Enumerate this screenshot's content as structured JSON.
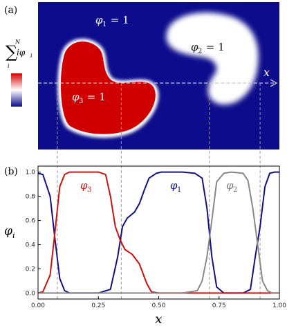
{
  "panel_a": {
    "label": "(a)",
    "sum_top": "N",
    "sum_symbol": "∑",
    "sum_bottom": "i",
    "sum_body": "iφ",
    "sum_body_sub": "i",
    "region_labels": [
      {
        "name": "φ",
        "sub": "1",
        "eq": " = 1"
      },
      {
        "name": "φ",
        "sub": "2",
        "eq": " = 1"
      },
      {
        "name": "φ",
        "sub": "3",
        "eq": " = 1"
      }
    ],
    "axis_arrow_label": "x",
    "colormap": [
      "#0a0a8a",
      "#ffffff",
      "#d10000"
    ]
  },
  "panel_b": {
    "label": "(b)",
    "xlabel": "x",
    "ylabel_sym": "φ",
    "ylabel_sub": "i",
    "xlim": [
      0.0,
      1.0
    ],
    "ylim": [
      0.0,
      1.0
    ],
    "xticks": [
      "0.00",
      "0.25",
      "0.50",
      "0.75",
      "1.00"
    ],
    "yticks": [
      "0.0",
      "0.2",
      "0.4",
      "0.6",
      "0.8",
      "1.0"
    ],
    "dashed_x": [
      0.08,
      0.345,
      0.71,
      0.92
    ],
    "series_labels": [
      {
        "name": "φ",
        "sub": "3",
        "color": "#cc1111"
      },
      {
        "name": "φ",
        "sub": "1",
        "color": "#101080"
      },
      {
        "name": "φ",
        "sub": "2",
        "color": "#888888"
      }
    ]
  },
  "chart_data": {
    "type": "line",
    "xlabel": "x",
    "ylabel": "φi",
    "xlim": [
      0,
      1
    ],
    "ylim": [
      0,
      1
    ],
    "grid": false,
    "series": [
      {
        "name": "φ1",
        "color": "#101080",
        "x": [
          0,
          0.02,
          0.05,
          0.07,
          0.09,
          0.11,
          0.13,
          0.16,
          0.2,
          0.25,
          0.3,
          0.33,
          0.35,
          0.37,
          0.4,
          0.42,
          0.44,
          0.46,
          0.49,
          0.51,
          0.55,
          0.6,
          0.65,
          0.68,
          0.7,
          0.72,
          0.74,
          0.77,
          0.8,
          0.85,
          0.88,
          0.9,
          0.92,
          0.94,
          0.96,
          0.98,
          1.0
        ],
        "y": [
          0.99,
          0.98,
          0.8,
          0.45,
          0.12,
          0.02,
          0.0,
          0.0,
          0.0,
          0.0,
          0.03,
          0.3,
          0.55,
          0.62,
          0.67,
          0.74,
          0.85,
          0.95,
          0.99,
          1.0,
          1.0,
          1.0,
          0.99,
          0.95,
          0.7,
          0.3,
          0.05,
          0.0,
          0.0,
          0.0,
          0.03,
          0.3,
          0.55,
          0.88,
          0.99,
          1.0,
          1.0
        ]
      },
      {
        "name": "φ3",
        "color": "#cc1111",
        "x": [
          0,
          0.02,
          0.05,
          0.07,
          0.09,
          0.11,
          0.13,
          0.16,
          0.2,
          0.25,
          0.28,
          0.3,
          0.32,
          0.34,
          0.36,
          0.39,
          0.42,
          0.45,
          0.47,
          0.5,
          0.6,
          0.8,
          1.0
        ],
        "y": [
          0.0,
          0.01,
          0.15,
          0.5,
          0.88,
          0.98,
          1.0,
          1.0,
          1.0,
          1.0,
          0.98,
          0.8,
          0.55,
          0.44,
          0.36,
          0.32,
          0.24,
          0.08,
          0.01,
          0.0,
          0.0,
          0.0,
          0.0
        ]
      },
      {
        "name": "φ2",
        "color": "#888888",
        "x": [
          0,
          0.6,
          0.66,
          0.68,
          0.7,
          0.72,
          0.74,
          0.77,
          0.8,
          0.85,
          0.87,
          0.89,
          0.91,
          0.93,
          0.95,
          0.97,
          1.0
        ],
        "y": [
          0.0,
          0.0,
          0.02,
          0.1,
          0.3,
          0.6,
          0.92,
          0.99,
          1.0,
          0.99,
          0.93,
          0.7,
          0.4,
          0.1,
          0.02,
          0.0,
          0.0
        ]
      }
    ]
  }
}
